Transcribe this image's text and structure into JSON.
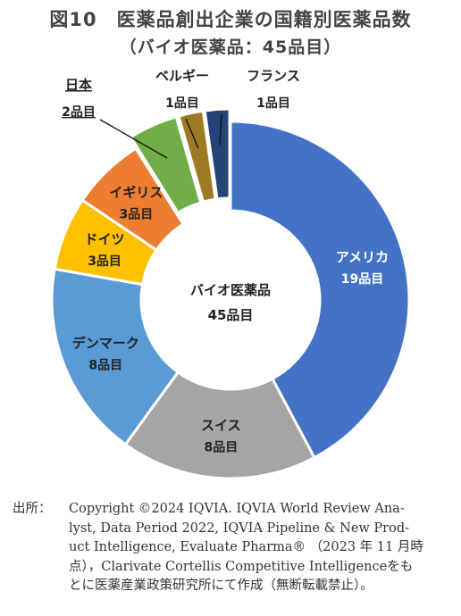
{
  "title": "図10　医薬品創出企業の国籍別医薬品数",
  "subtitle": "（バイオ医薬品：45品目）",
  "chart_data": {
    "type": "pie",
    "variant": "donut",
    "center_label": [
      "バイオ医薬品",
      "45品目"
    ],
    "categories": [
      "アメリカ",
      "スイス",
      "デンマーク",
      "ドイツ",
      "イギリス",
      "日本",
      "ベルギー",
      "フランス"
    ],
    "values": [
      19,
      8,
      8,
      3,
      3,
      2,
      1,
      1
    ],
    "value_labels": [
      "19品目",
      "8品目",
      "8品目",
      "3品目",
      "3品目",
      "2品目",
      "1品目",
      "1品目"
    ],
    "colors": [
      "#4472C4",
      "#A5A5A5",
      "#5B9BD5",
      "#FFC000",
      "#ED7D31",
      "#70AD47",
      "#9E7A22",
      "#264478"
    ],
    "exploded": [
      "日本",
      "ベルギー",
      "フランス"
    ],
    "total": 45
  },
  "source": {
    "head": "出所：",
    "lines": [
      "Copyright ©2024 IQVIA. IQVIA World Review Ana-",
      "lyst, Data Period 2022, IQVIA Pipeline & New Prod-",
      "uct Intelligence, Evaluate Pharma® （2023 年 11 月時",
      "点），Clarivate Cortellis Competitive Intelligenceをも",
      "とに医薬産業政策研究所にて作成（無断転載禁止）。"
    ]
  }
}
